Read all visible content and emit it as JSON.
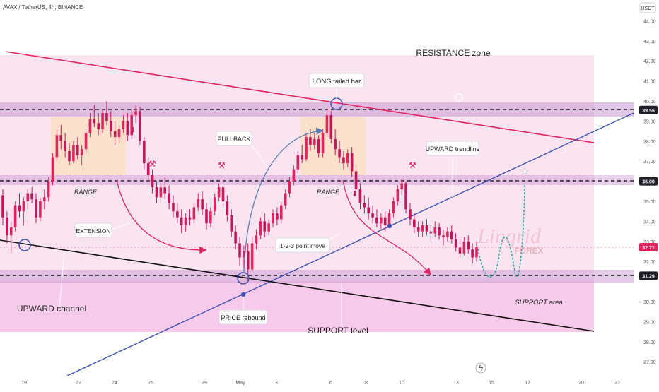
{
  "header": {
    "symbol_line": "AVAX / TetherUS, 4h, BINANCE",
    "currency_badge": "USDT"
  },
  "price_axis": {
    "ticks": [
      "44.00",
      "43.00",
      "42.00",
      "41.00",
      "40.00",
      "39.00",
      "38.00",
      "37.00",
      "35.00",
      "34.00",
      "33.00",
      "32.00",
      "30.00",
      "29.00",
      "28.00",
      "27.00"
    ],
    "badges": [
      {
        "label": "39.55",
        "color": "#1e1e28"
      },
      {
        "label": "36.00",
        "color": "#1e1e28"
      },
      {
        "label": "32.71",
        "color": "#e0245e"
      },
      {
        "label": "31.29",
        "color": "#1e1e28"
      }
    ]
  },
  "time_axis": {
    "ticks": [
      "19",
      "22",
      "24",
      "26",
      "29",
      "May",
      "3",
      "6",
      "8",
      "10",
      "13",
      "15",
      "17",
      "20",
      "22"
    ]
  },
  "annotations": {
    "resistance_zone": "RESISTANCE zone",
    "long_tailed_bar": "LONG tailed bar",
    "pullback": "PULLBACK",
    "upward_trendline": "UPWARD trendline",
    "range_left": "RANGE",
    "range_right": "RANGE",
    "extension": "EXTENSION",
    "point_move": "1-2-3 point move",
    "upward_channel": "UPWARD channel",
    "price_rebound": "PRICE rebound",
    "support_level": "SUPPORT level",
    "support_area": "SUPPORT area"
  },
  "watermark": {
    "brand": "Lingrid",
    "sub": "FOREX"
  },
  "colors": {
    "resistance_line": "#e0245e",
    "trend_line": "#3f51b5",
    "channel_line": "#111111",
    "candle_up": "#e0245e",
    "candle_down": "#c2185b",
    "zone_band": "#b48cc8",
    "range_box": "#f7d9b8",
    "projection": "#26a69a",
    "bg_zone": "#f9dff0"
  },
  "chart_data": {
    "type": "candlestick",
    "symbol": "AVAX / TetherUS",
    "interval": "4h",
    "exchange": "BINANCE",
    "y_axis_range": [
      26.5,
      45
    ],
    "candles": [
      [
        35.3,
        35.6,
        33.8,
        34.2
      ],
      [
        34.2,
        34.5,
        32.9,
        33.3
      ],
      [
        33.3,
        34.0,
        32.4,
        33.7
      ],
      [
        33.7,
        35.0,
        33.5,
        34.8
      ],
      [
        34.8,
        35.4,
        34.2,
        34.5
      ],
      [
        34.5,
        35.2,
        33.8,
        35.0
      ],
      [
        35.0,
        35.6,
        34.6,
        35.4
      ],
      [
        35.4,
        35.7,
        34.9,
        35.1
      ],
      [
        35.1,
        35.4,
        33.9,
        34.2
      ],
      [
        34.2,
        35.2,
        34.0,
        35.0
      ],
      [
        35.0,
        35.6,
        34.6,
        35.2
      ],
      [
        35.2,
        36.2,
        35.0,
        36.0
      ],
      [
        36.0,
        37.4,
        35.8,
        37.2
      ],
      [
        37.2,
        38.6,
        37.0,
        38.3
      ],
      [
        38.3,
        38.8,
        37.6,
        38.0
      ],
      [
        38.0,
        38.4,
        37.2,
        37.5
      ],
      [
        37.5,
        37.9,
        36.8,
        37.0
      ],
      [
        37.0,
        38.0,
        36.9,
        37.8
      ],
      [
        37.8,
        38.2,
        37.1,
        37.3
      ],
      [
        37.3,
        37.8,
        36.8,
        37.6
      ],
      [
        37.6,
        38.6,
        37.4,
        38.4
      ],
      [
        38.4,
        39.4,
        38.2,
        39.1
      ],
      [
        39.1,
        39.8,
        38.7,
        38.9
      ],
      [
        38.9,
        39.4,
        38.3,
        38.6
      ],
      [
        38.6,
        39.6,
        38.4,
        39.4
      ],
      [
        39.4,
        40.0,
        38.8,
        39.0
      ],
      [
        39.0,
        39.5,
        38.2,
        38.5
      ],
      [
        38.5,
        39.0,
        37.8,
        38.2
      ],
      [
        38.2,
        38.8,
        37.9,
        38.6
      ],
      [
        38.6,
        39.3,
        38.4,
        39.0
      ],
      [
        39.0,
        39.4,
        38.0,
        38.3
      ],
      [
        38.3,
        39.6,
        38.1,
        39.3
      ],
      [
        39.3,
        39.8,
        38.9,
        39.5
      ],
      [
        39.5,
        39.7,
        37.8,
        38.0
      ],
      [
        38.0,
        38.2,
        36.6,
        36.9
      ],
      [
        36.9,
        37.2,
        36.0,
        36.3
      ],
      [
        36.3,
        36.6,
        35.4,
        35.7
      ],
      [
        35.7,
        36.0,
        34.9,
        35.2
      ],
      [
        35.2,
        35.9,
        34.9,
        35.7
      ],
      [
        35.7,
        36.2,
        35.1,
        35.4
      ],
      [
        35.4,
        35.8,
        34.6,
        34.9
      ],
      [
        34.9,
        35.3,
        34.2,
        34.5
      ],
      [
        34.5,
        34.9,
        33.9,
        34.2
      ],
      [
        34.2,
        34.6,
        33.4,
        33.8
      ],
      [
        33.8,
        34.4,
        33.5,
        34.2
      ],
      [
        34.2,
        34.6,
        33.8,
        34.1
      ],
      [
        34.1,
        34.9,
        33.9,
        34.7
      ],
      [
        34.7,
        35.4,
        34.5,
        35.1
      ],
      [
        35.1,
        35.5,
        34.3,
        34.6
      ],
      [
        34.6,
        34.9,
        33.6,
        33.9
      ],
      [
        33.9,
        34.7,
        33.7,
        34.5
      ],
      [
        34.5,
        35.4,
        34.3,
        35.2
      ],
      [
        35.2,
        35.9,
        35.0,
        35.7
      ],
      [
        35.7,
        36.1,
        34.8,
        35.0
      ],
      [
        35.0,
        35.3,
        34.0,
        34.3
      ],
      [
        34.3,
        34.6,
        33.2,
        33.5
      ],
      [
        33.5,
        33.8,
        32.6,
        32.9
      ],
      [
        32.9,
        33.2,
        31.8,
        32.2
      ],
      [
        32.2,
        32.8,
        31.6,
        32.5
      ],
      [
        32.5,
        32.9,
        31.0,
        31.6
      ],
      [
        31.6,
        33.2,
        31.5,
        32.9
      ],
      [
        32.9,
        33.6,
        32.6,
        33.3
      ],
      [
        33.3,
        34.2,
        33.1,
        34.0
      ],
      [
        34.0,
        34.4,
        33.2,
        33.5
      ],
      [
        33.5,
        34.1,
        33.3,
        33.9
      ],
      [
        33.9,
        34.6,
        33.7,
        34.4
      ],
      [
        34.4,
        34.7,
        33.8,
        34.1
      ],
      [
        34.1,
        35.0,
        33.9,
        34.8
      ],
      [
        34.8,
        35.6,
        34.6,
        35.4
      ],
      [
        35.4,
        36.2,
        35.2,
        36.0
      ],
      [
        36.0,
        36.8,
        35.8,
        36.6
      ],
      [
        36.6,
        37.5,
        36.4,
        37.3
      ],
      [
        37.3,
        37.8,
        36.9,
        37.1
      ],
      [
        37.1,
        38.4,
        37.0,
        38.2
      ],
      [
        38.2,
        38.6,
        37.5,
        37.8
      ],
      [
        37.8,
        38.4,
        37.6,
        38.1
      ],
      [
        38.1,
        38.3,
        37.2,
        37.4
      ],
      [
        37.4,
        38.6,
        37.2,
        38.4
      ],
      [
        38.4,
        39.6,
        38.2,
        39.3
      ],
      [
        39.3,
        39.5,
        37.9,
        38.1
      ],
      [
        38.1,
        38.6,
        37.3,
        37.6
      ],
      [
        37.6,
        38.0,
        36.9,
        37.2
      ],
      [
        37.2,
        37.5,
        36.6,
        36.9
      ],
      [
        36.9,
        37.6,
        36.7,
        37.4
      ],
      [
        37.4,
        37.7,
        36.2,
        36.5
      ],
      [
        36.5,
        36.8,
        35.3,
        35.6
      ],
      [
        35.6,
        35.9,
        34.6,
        34.9
      ],
      [
        34.9,
        35.3,
        34.4,
        34.7
      ],
      [
        34.7,
        35.2,
        34.1,
        34.4
      ],
      [
        34.4,
        34.8,
        33.9,
        34.2
      ],
      [
        34.2,
        34.6,
        33.7,
        33.9
      ],
      [
        33.9,
        34.4,
        33.6,
        34.2
      ],
      [
        34.2,
        34.5,
        33.5,
        33.8
      ],
      [
        33.8,
        34.6,
        33.7,
        34.4
      ],
      [
        34.4,
        35.2,
        34.2,
        35.0
      ],
      [
        35.0,
        35.8,
        34.8,
        35.6
      ],
      [
        35.6,
        36.1,
        35.3,
        35.9
      ],
      [
        35.9,
        36.0,
        34.4,
        34.6
      ],
      [
        34.6,
        34.9,
        33.8,
        34.1
      ],
      [
        34.1,
        34.4,
        33.4,
        33.7
      ],
      [
        33.7,
        34.0,
        33.2,
        33.5
      ],
      [
        33.5,
        34.0,
        33.2,
        33.8
      ],
      [
        33.8,
        34.1,
        33.3,
        33.5
      ],
      [
        33.5,
        33.8,
        33.0,
        33.4
      ],
      [
        33.4,
        34.0,
        33.2,
        33.7
      ],
      [
        33.7,
        33.9,
        33.1,
        33.3
      ],
      [
        33.3,
        33.6,
        32.8,
        33.2
      ],
      [
        33.2,
        33.7,
        33.0,
        33.5
      ],
      [
        33.5,
        33.8,
        32.9,
        33.1
      ],
      [
        33.1,
        33.4,
        32.5,
        32.7
      ],
      [
        32.7,
        33.1,
        32.2,
        32.4
      ],
      [
        32.4,
        33.2,
        32.3,
        33.0
      ],
      [
        33.0,
        33.3,
        32.4,
        32.6
      ],
      [
        32.6,
        32.9,
        31.9,
        32.2
      ],
      [
        32.2,
        33.0,
        32.0,
        32.71
      ]
    ],
    "levels": {
      "resistance": 39.55,
      "range_top": 36.0,
      "support": 31.29,
      "last_price": 32.71
    },
    "projection_path": [
      32.71,
      31.4,
      33.2,
      31.5,
      34.2,
      36.2
    ],
    "legend": "none",
    "grid": false
  }
}
